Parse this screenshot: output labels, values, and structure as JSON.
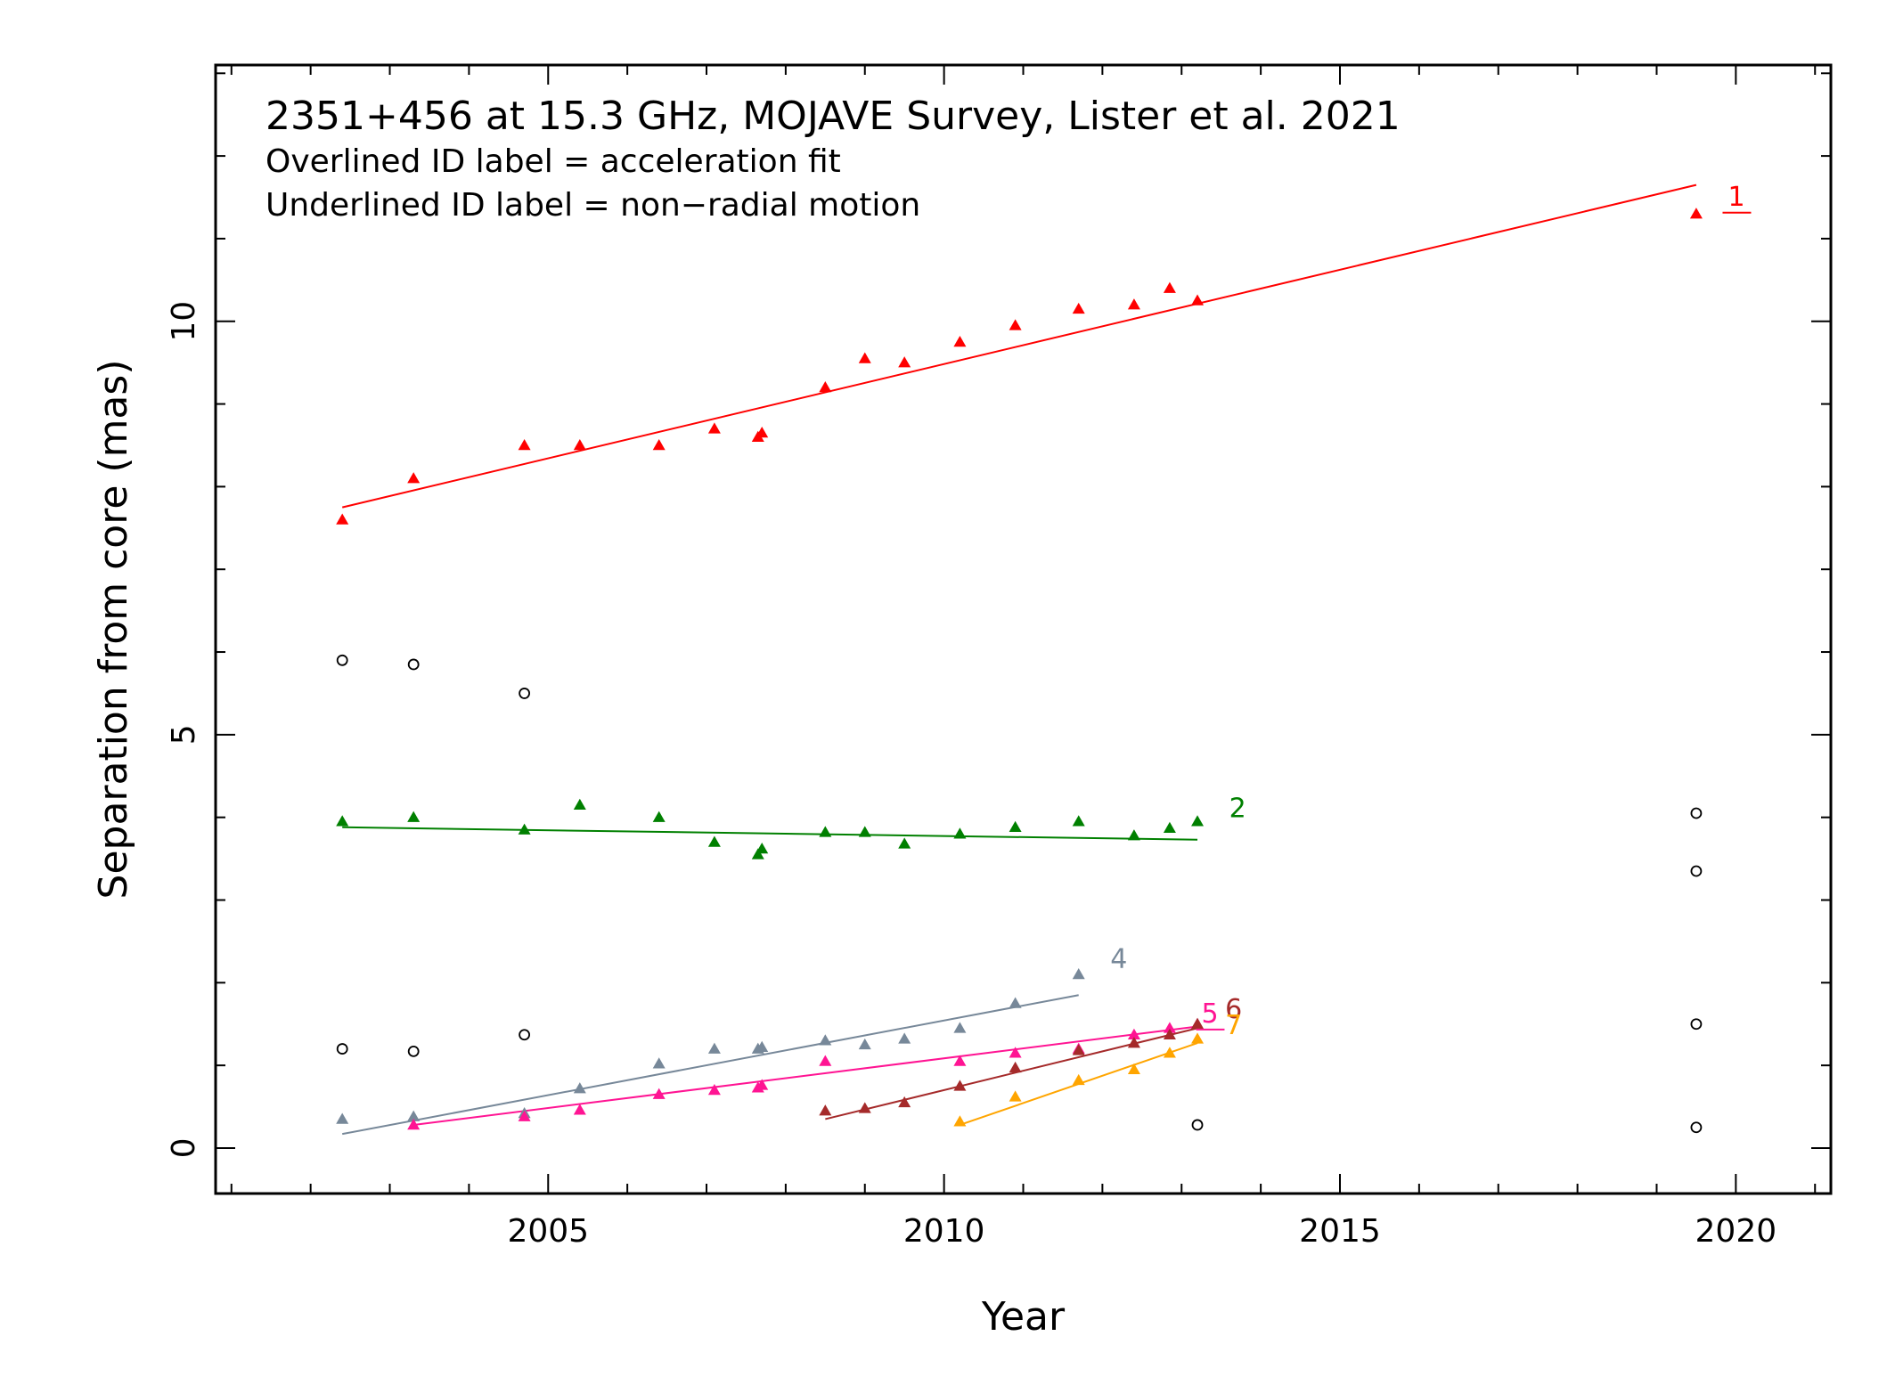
{
  "chart_data": {
    "type": "scatter",
    "title": "2351+456 at 15.3 GHz, MOJAVE Survey, Lister et al. 2021",
    "notes": [
      "Overlined ID label = acceleration fit",
      "Underlined ID label = non−radial motion"
    ],
    "xlabel": "Year",
    "ylabel": "Separation from core (mas)",
    "xlim": [
      2000.8,
      2021.2
    ],
    "ylim": [
      -0.55,
      13.1
    ],
    "x_ticks": [
      2005,
      2010,
      2015,
      2020
    ],
    "x_tick_labels": [
      "2005",
      "2010",
      "2015",
      "2020"
    ],
    "y_ticks": [
      0,
      5,
      10
    ],
    "y_tick_labels": [
      "0",
      "5",
      "10"
    ],
    "x_minor_step": 1,
    "y_minor_step": 1,
    "grid": false,
    "series": [
      {
        "name": "1",
        "color": "#ff0000",
        "marker": "triangle",
        "label_style": "underline",
        "points": [
          [
            2002.4,
            7.6
          ],
          [
            2003.3,
            8.1
          ],
          [
            2004.7,
            8.5
          ],
          [
            2005.4,
            8.5
          ],
          [
            2006.4,
            8.5
          ],
          [
            2007.1,
            8.7
          ],
          [
            2007.65,
            8.6
          ],
          [
            2007.7,
            8.65
          ],
          [
            2008.5,
            9.2
          ],
          [
            2009.0,
            9.55
          ],
          [
            2009.5,
            9.5
          ],
          [
            2010.2,
            9.75
          ],
          [
            2010.9,
            9.95
          ],
          [
            2011.7,
            10.15
          ],
          [
            2012.4,
            10.2
          ],
          [
            2012.85,
            10.4
          ],
          [
            2013.2,
            10.25
          ],
          [
            2019.5,
            11.3
          ]
        ],
        "fit": [
          [
            2002.4,
            7.75
          ],
          [
            2019.5,
            11.65
          ]
        ],
        "label_pos": [
          2019.9,
          11.4
        ]
      },
      {
        "name": "2",
        "color": "#008000",
        "marker": "triangle",
        "label_style": "plain",
        "points": [
          [
            2002.4,
            3.95
          ],
          [
            2003.3,
            4.0
          ],
          [
            2004.7,
            3.85
          ],
          [
            2005.4,
            4.15
          ],
          [
            2006.4,
            4.0
          ],
          [
            2007.1,
            3.7
          ],
          [
            2007.65,
            3.55
          ],
          [
            2007.7,
            3.62
          ],
          [
            2008.5,
            3.82
          ],
          [
            2009.0,
            3.82
          ],
          [
            2009.5,
            3.68
          ],
          [
            2010.2,
            3.8
          ],
          [
            2010.9,
            3.88
          ],
          [
            2011.7,
            3.95
          ],
          [
            2012.4,
            3.78
          ],
          [
            2012.85,
            3.87
          ],
          [
            2013.2,
            3.95
          ]
        ],
        "fit": [
          [
            2002.4,
            3.88
          ],
          [
            2013.2,
            3.73
          ]
        ],
        "label_pos": [
          2013.6,
          4.0
        ]
      },
      {
        "name": "4",
        "color": "#778899",
        "marker": "triangle",
        "label_style": "plain",
        "points": [
          [
            2002.4,
            0.35
          ],
          [
            2003.3,
            0.38
          ],
          [
            2004.7,
            0.42
          ],
          [
            2005.4,
            0.72
          ],
          [
            2006.4,
            1.02
          ],
          [
            2007.1,
            1.2
          ],
          [
            2007.65,
            1.2
          ],
          [
            2007.7,
            1.22
          ],
          [
            2008.5,
            1.3
          ],
          [
            2009.0,
            1.25
          ],
          [
            2009.5,
            1.32
          ],
          [
            2010.2,
            1.45
          ],
          [
            2010.9,
            1.75
          ],
          [
            2011.7,
            2.1
          ]
        ],
        "fit": [
          [
            2002.4,
            0.17
          ],
          [
            2011.7,
            1.85
          ]
        ],
        "label_pos": [
          2012.1,
          2.18
        ]
      },
      {
        "name": "5",
        "color": "#ff1493",
        "marker": "triangle",
        "label_style": "underline",
        "points": [
          [
            2003.3,
            0.28
          ],
          [
            2004.7,
            0.38
          ],
          [
            2005.4,
            0.46
          ],
          [
            2006.4,
            0.65
          ],
          [
            2007.1,
            0.7
          ],
          [
            2007.65,
            0.73
          ],
          [
            2007.7,
            0.76
          ],
          [
            2008.5,
            1.05
          ],
          [
            2010.2,
            1.05
          ],
          [
            2010.9,
            1.15
          ],
          [
            2011.7,
            1.2
          ],
          [
            2012.4,
            1.37
          ],
          [
            2012.85,
            1.45
          ],
          [
            2013.2,
            1.5
          ]
        ],
        "fit": [
          [
            2003.3,
            0.28
          ],
          [
            2013.2,
            1.47
          ]
        ],
        "label_pos": [
          2013.25,
          1.52
        ]
      },
      {
        "name": "6",
        "color": "#a52a2a",
        "marker": "triangle",
        "label_style": "plain",
        "points": [
          [
            2008.5,
            0.45
          ],
          [
            2009.0,
            0.48
          ],
          [
            2009.5,
            0.55
          ],
          [
            2010.2,
            0.75
          ],
          [
            2010.9,
            0.97
          ],
          [
            2011.7,
            1.18
          ],
          [
            2012.4,
            1.27
          ],
          [
            2012.85,
            1.37
          ],
          [
            2013.2,
            1.5
          ]
        ],
        "fit": [
          [
            2008.5,
            0.35
          ],
          [
            2013.2,
            1.45
          ]
        ],
        "label_pos": [
          2013.55,
          1.57
        ]
      },
      {
        "name": "7",
        "color": "#ffa500",
        "marker": "triangle",
        "label_style": "plain",
        "points": [
          [
            2010.2,
            0.32
          ],
          [
            2010.9,
            0.62
          ],
          [
            2011.7,
            0.82
          ],
          [
            2012.4,
            0.95
          ],
          [
            2012.85,
            1.15
          ],
          [
            2013.2,
            1.32
          ]
        ],
        "fit": [
          [
            2010.2,
            0.28
          ],
          [
            2013.2,
            1.27
          ]
        ],
        "label_pos": [
          2013.55,
          1.38
        ]
      },
      {
        "name": "",
        "color": "#000000",
        "marker": "circle",
        "points": [
          [
            2002.4,
            5.9
          ],
          [
            2003.3,
            5.85
          ],
          [
            2004.7,
            5.5
          ],
          [
            2002.4,
            1.2
          ],
          [
            2003.3,
            1.17
          ],
          [
            2004.7,
            1.37
          ],
          [
            2013.2,
            0.28
          ],
          [
            2019.5,
            4.05
          ],
          [
            2019.5,
            3.35
          ],
          [
            2019.5,
            1.5
          ],
          [
            2019.5,
            0.25
          ]
        ]
      }
    ]
  }
}
